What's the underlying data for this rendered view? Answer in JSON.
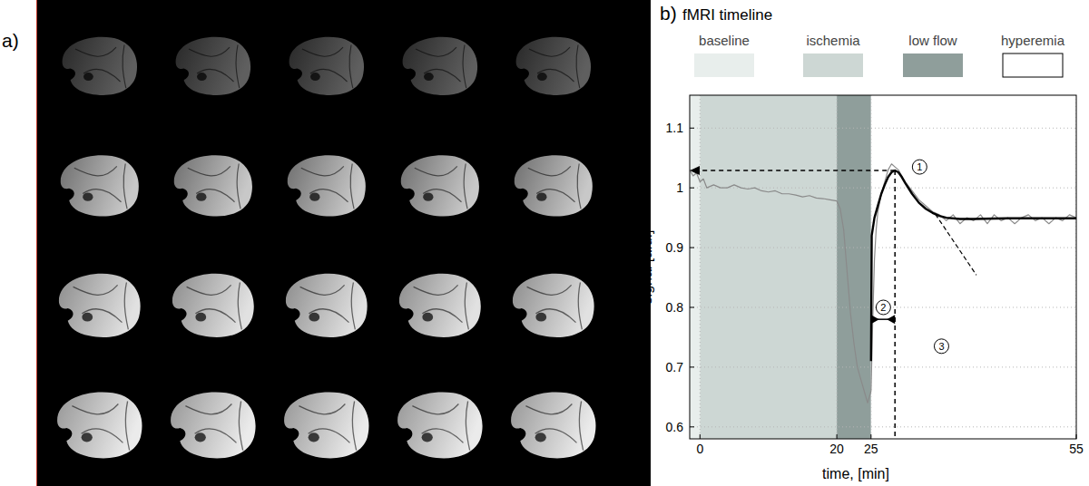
{
  "panel_labels": [
    "a)",
    "b)"
  ],
  "chart_data": {
    "type": "line",
    "title": "fMRI timeline",
    "x_label": "time, [min]",
    "y_label": "signal [a.u.]",
    "xlim": [
      -1.5,
      55
    ],
    "xticks": [
      0,
      20,
      25,
      55
    ],
    "ylim": [
      0.58,
      1.155
    ],
    "yticks": [
      0.6,
      0.7,
      0.8,
      0.9,
      1,
      1.1
    ],
    "grid": true,
    "phases": [
      {
        "label": "baseline",
        "start": -1.5,
        "end": 0,
        "color": "#e8eeec"
      },
      {
        "label": "ischemia",
        "start": 0,
        "end": 20,
        "color": "#cdd7d4"
      },
      {
        "label": "low flow",
        "start": 20,
        "end": 25,
        "color": "#8f9e9b"
      },
      {
        "label": "hyperemia",
        "start": 25,
        "end": 55,
        "color": "#ffffff"
      }
    ],
    "series": [
      {
        "color": "#8a8a8a",
        "x": [
          -1.5,
          -1,
          -0.5,
          0,
          0.5,
          1,
          2,
          3,
          4,
          5,
          6,
          7,
          8,
          9,
          10,
          11,
          12,
          13,
          14,
          15,
          16,
          17,
          18,
          19,
          20,
          20.5,
          21,
          21.5,
          22,
          22.5,
          23,
          23.5,
          24,
          24.5,
          25,
          25.25,
          25.5,
          25.75,
          26,
          26.5,
          27,
          27.5,
          28,
          28.5,
          29,
          29.5,
          30,
          31,
          32,
          33,
          34,
          35,
          36,
          37,
          38,
          39,
          40,
          41,
          42,
          43,
          44,
          45,
          46,
          47,
          48,
          49,
          50,
          51,
          52,
          53,
          54,
          55
        ],
        "values": [
          1.03,
          1.02,
          1.025,
          1.01,
          1.015,
          1.0,
          1.005,
          1.0,
          1.0,
          1.005,
          1.0,
          0.998,
          1.0,
          0.995,
          0.993,
          0.995,
          0.99,
          0.99,
          0.988,
          0.985,
          0.987,
          0.983,
          0.982,
          0.98,
          0.978,
          0.965,
          0.93,
          0.86,
          0.79,
          0.74,
          0.7,
          0.68,
          0.66,
          0.64,
          0.66,
          0.78,
          0.88,
          0.93,
          0.96,
          0.99,
          1.01,
          1.03,
          1.04,
          1.035,
          1.03,
          1.02,
          1.01,
          0.995,
          0.98,
          0.97,
          0.96,
          0.955,
          0.945,
          0.955,
          0.94,
          0.95,
          0.945,
          0.955,
          0.94,
          0.955,
          0.945,
          0.95,
          0.94,
          0.95,
          0.955,
          0.945,
          0.95,
          0.94,
          0.95,
          0.945,
          0.955,
          0.95
        ]
      },
      {
        "color": "#000000",
        "x": [
          25,
          25.1,
          25.5,
          26,
          26.5,
          27,
          27.5,
          28,
          28.5,
          29,
          29.5,
          30,
          31,
          32,
          33,
          34,
          35,
          36,
          38,
          40,
          45,
          50,
          55
        ],
        "values": [
          0.71,
          0.92,
          0.95,
          0.97,
          0.99,
          1.005,
          1.018,
          1.026,
          1.029,
          1.026,
          1.018,
          1.008,
          0.99,
          0.975,
          0.965,
          0.958,
          0.953,
          0.95,
          0.948,
          0.948,
          0.949,
          0.949,
          0.949
        ]
      }
    ],
    "annotations": [
      {
        "label": "1",
        "x": 32.1,
        "y": 1.035
      },
      {
        "label": "2",
        "x": 26.8,
        "y": 0.8
      },
      {
        "label": "3",
        "x": 35.3,
        "y": 0.735
      }
    ],
    "peak": {
      "x": 28.5,
      "y": 1.029
    },
    "interval": {
      "start": 25,
      "end": 28.5,
      "y": 0.78
    },
    "tangent": {
      "x": [
        34.4,
        40.4
      ],
      "y": [
        0.956,
        0.854
      ]
    }
  }
}
